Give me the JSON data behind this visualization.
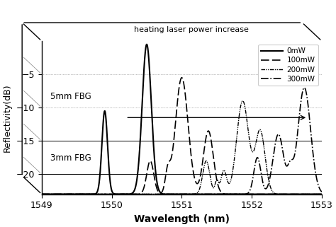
{
  "xlabel": "Wavelength (nm)",
  "ylabel": "Reflectivity(dB)",
  "xlim": [
    1549,
    1553
  ],
  "ylim": [
    -23,
    0
  ],
  "yticks": [
    -5,
    -10,
    -15,
    -20
  ],
  "xticks": [
    1549,
    1550,
    1551,
    1552,
    1553
  ],
  "arrow_text": "heating laser power increase",
  "label_5mm": "5mm FBG",
  "label_3mm": "3mm FBG",
  "legend_entries": [
    "0mW",
    "100mW",
    "200mW",
    "300mW"
  ],
  "font_size": 9
}
